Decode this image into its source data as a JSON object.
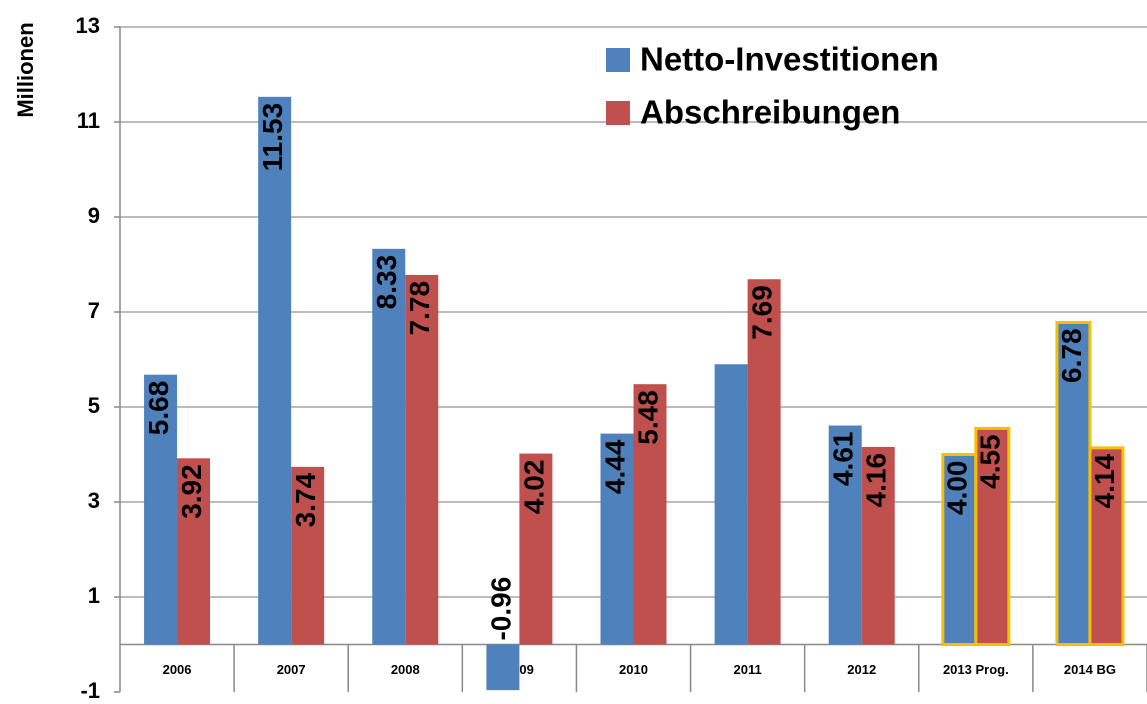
{
  "chart_data": {
    "type": "bar",
    "y_label": "Millionen",
    "categories": [
      "2006",
      "2007",
      "2008",
      "2009",
      "2010",
      "2011",
      "2012",
      "2013 Prog.",
      "2014 BG"
    ],
    "series": [
      {
        "name": "Netto-Investitionen",
        "color": "#4f81bd",
        "values": [
          5.68,
          11.53,
          8.33,
          -0.96,
          4.44,
          5.9,
          4.61,
          4.0,
          6.78
        ],
        "value_labels": [
          "5.68",
          "11.53",
          "8.33",
          "-0.96",
          "4.44",
          null,
          "4.61",
          "4.00",
          "6.78"
        ]
      },
      {
        "name": "Abschreibungen",
        "color": "#c0504d",
        "values": [
          3.92,
          3.74,
          7.78,
          4.02,
          5.48,
          7.69,
          4.16,
          4.55,
          4.14
        ],
        "value_labels": [
          "3.92",
          "3.74",
          "7.78",
          "4.02",
          "5.48",
          "7.69",
          "4.16",
          "4.55",
          "4.14"
        ]
      }
    ],
    "highlighted_categories": [
      "2013 Prog.",
      "2014 BG"
    ],
    "highlight_color": "#f5c000",
    "ylim": [
      -1,
      13
    ],
    "yticks": [
      -1,
      1,
      3,
      5,
      7,
      9,
      11,
      13
    ],
    "grid": true,
    "legend": "top-right"
  }
}
